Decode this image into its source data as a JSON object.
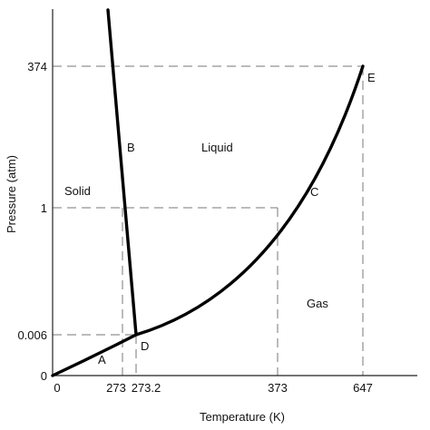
{
  "axes": {
    "x_title": "Temperature (K)",
    "y_title": "Pressure (atm)",
    "x_ticks": [
      "0",
      "273",
      "273.2",
      "373",
      "647"
    ],
    "y_ticks": [
      "374",
      "1",
      "0.006",
      "0"
    ]
  },
  "regions": {
    "solid": "Solid",
    "liquid": "Liquid",
    "gas": "Gas"
  },
  "points": {
    "a": "A",
    "b": "B",
    "c": "C",
    "d": "D",
    "e": "E"
  },
  "colors": {
    "curve": "#000000",
    "guide": "#777777",
    "axis": "#222222"
  }
}
